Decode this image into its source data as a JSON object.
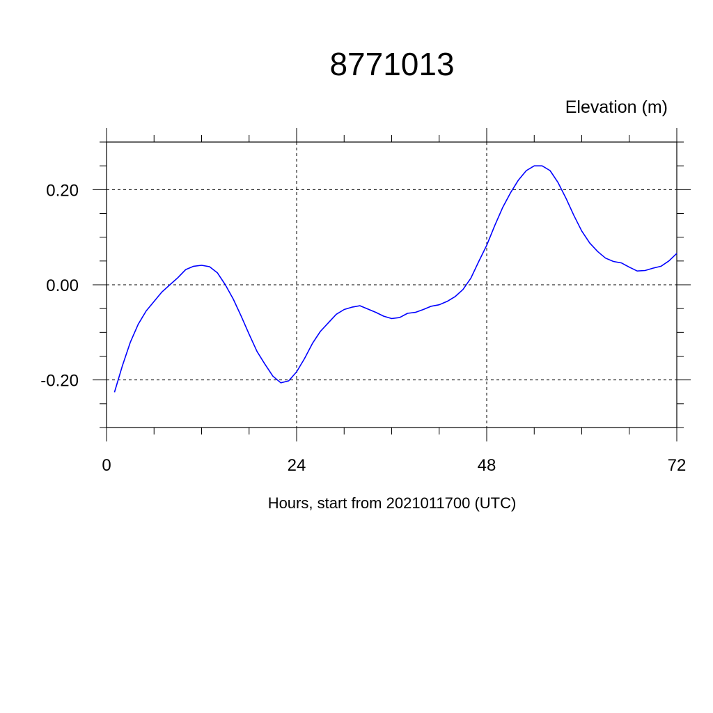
{
  "chart_data": {
    "type": "line",
    "title": "8771013",
    "ylabel": "Elevation (m)",
    "xlabel": "Hours, start from 2021011700 (UTC)",
    "xlim": [
      0,
      72
    ],
    "ylim": [
      -0.3,
      0.3
    ],
    "x_ticks": [
      0,
      24,
      48,
      72
    ],
    "x_tick_labels": [
      "0",
      "24",
      "48",
      "72"
    ],
    "y_ticks": [
      -0.2,
      0.0,
      0.2
    ],
    "y_tick_labels": [
      "-0.20",
      "0.00",
      "0.20"
    ],
    "grid": true,
    "colors": {
      "series": "#0000ff",
      "axis": "#000000"
    },
    "series": [
      {
        "x": [
          1,
          2,
          3,
          4,
          5,
          6,
          7,
          8,
          9,
          10,
          11,
          12,
          13,
          14,
          15,
          16,
          17,
          18,
          19,
          20,
          21,
          22,
          23,
          24,
          25,
          26,
          27,
          28,
          29,
          30,
          31,
          32,
          33,
          34,
          35,
          36,
          37,
          38,
          39,
          40,
          41,
          42,
          43,
          44,
          45,
          46,
          47,
          48,
          49,
          50,
          51,
          52,
          53,
          54,
          55,
          56,
          57,
          58,
          59,
          60,
          61,
          62,
          63,
          64,
          65,
          66,
          67,
          68,
          69,
          70,
          71,
          72
        ],
        "y": [
          -0.226,
          -0.17,
          -0.121,
          -0.083,
          -0.055,
          -0.035,
          -0.015,
          0.0,
          0.015,
          0.032,
          0.039,
          0.041,
          0.038,
          0.025,
          0.0,
          -0.03,
          -0.066,
          -0.104,
          -0.14,
          -0.167,
          -0.192,
          -0.206,
          -0.202,
          -0.183,
          -0.155,
          -0.123,
          -0.098,
          -0.08,
          -0.062,
          -0.052,
          -0.047,
          -0.044,
          -0.051,
          -0.058,
          -0.066,
          -0.071,
          -0.069,
          -0.06,
          -0.058,
          -0.052,
          -0.045,
          -0.042,
          -0.035,
          -0.025,
          -0.01,
          0.014,
          0.049,
          0.083,
          0.124,
          0.162,
          0.193,
          0.22,
          0.24,
          0.25,
          0.25,
          0.24,
          0.215,
          0.182,
          0.146,
          0.113,
          0.088,
          0.07,
          0.056,
          0.049,
          0.046,
          0.037,
          0.029,
          0.03,
          0.035,
          0.039,
          0.05,
          0.066
        ]
      }
    ]
  }
}
